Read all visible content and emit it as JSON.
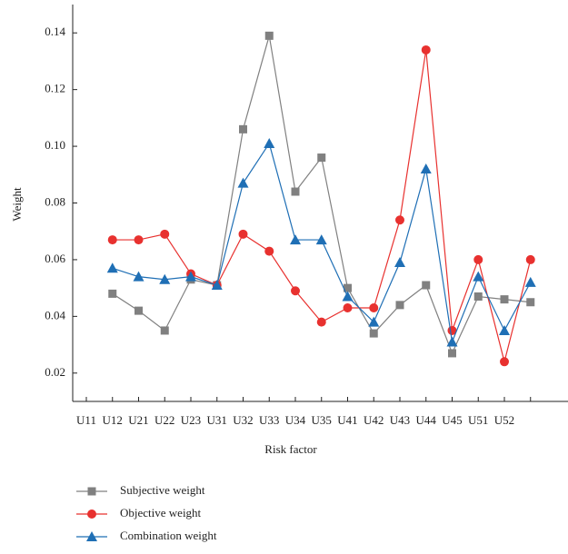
{
  "chart_data": {
    "type": "line",
    "x_label": "Risk factor",
    "y_label": "Weight",
    "categories": [
      "U11",
      "U12",
      "U21",
      "U22",
      "U23",
      "U31",
      "U32",
      "U33",
      "U34",
      "U35",
      "U41",
      "U42",
      "U43",
      "U44",
      "U45",
      "U51",
      "U52",
      null
    ],
    "series": [
      {
        "name": "Subjective weight",
        "color": "#808080",
        "marker": "square",
        "values": [
          null,
          0.048,
          0.042,
          0.035,
          0.053,
          0.051,
          0.106,
          0.139,
          0.084,
          0.096,
          0.05,
          0.034,
          0.044,
          0.051,
          0.027,
          0.047,
          0.046,
          0.045
        ]
      },
      {
        "name": "Objective weight",
        "color": "#e8312f",
        "marker": "circle",
        "values": [
          null,
          0.067,
          0.067,
          0.069,
          0.055,
          0.051,
          0.069,
          0.063,
          0.049,
          0.038,
          0.043,
          0.043,
          0.074,
          0.134,
          0.035,
          0.06,
          0.024,
          0.06
        ]
      },
      {
        "name": "Combination weight",
        "color": "#1f6fb5",
        "marker": "triangle",
        "values": [
          null,
          0.057,
          0.054,
          0.053,
          0.054,
          0.051,
          0.087,
          0.101,
          0.067,
          0.067,
          0.047,
          0.038,
          0.059,
          0.092,
          0.031,
          0.054,
          0.035,
          0.052
        ]
      }
    ],
    "ylim": [
      0.01,
      0.15
    ],
    "yticks": [
      0.02,
      0.04,
      0.06,
      0.08,
      {
        "value": 0.1,
        "label": "0.10"
      },
      0.12,
      0.14
    ]
  }
}
